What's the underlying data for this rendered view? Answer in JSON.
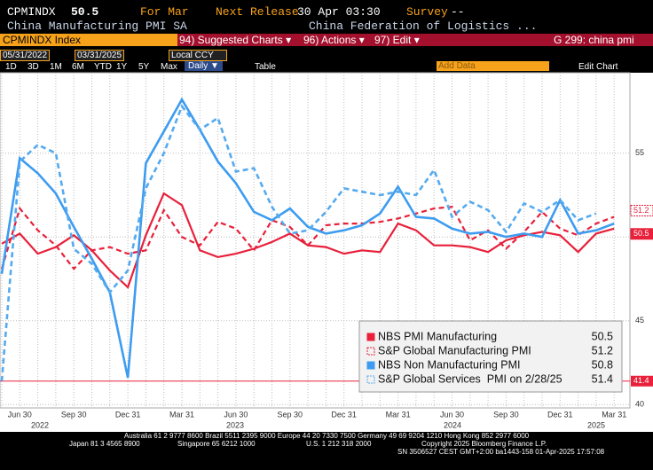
{
  "header": {
    "ticker": "CPMINDX",
    "period": "For Mar",
    "next_release_label": "Next Release",
    "next_release": "30 Apr 03:30",
    "survey_label": "Survey",
    "survey": "--",
    "description": "China Manufacturing PMI SA",
    "source": "China Federation of Logistics ...",
    "security": "CPMINDX Index",
    "menu": [
      "94) Suggested Charts ▾",
      "96) Actions ▾",
      "97) Edit ▾"
    ],
    "chart_name": "G 299: china pmi"
  },
  "toolbar": {
    "start_date": "05/31/2022",
    "end_date": "03/31/2025",
    "currency": "Local CCY",
    "ranges": [
      "1D",
      "3D",
      "1M",
      "6M",
      "YTD",
      "1Y",
      "5Y",
      "Max"
    ],
    "frequency": "Daily ▼",
    "table": "Table",
    "add_data": "Add Data",
    "edit_chart": "Edit Chart"
  },
  "chart_data": {
    "type": "line",
    "categories": [
      null,
      "Jun 30",
      null,
      null,
      "Sep 30",
      null,
      null,
      "Dec 31",
      null,
      null,
      "Mar 31",
      null,
      null,
      "Jun 30",
      null,
      null,
      "Sep 30",
      null,
      null,
      "Dec 31",
      null,
      null,
      "Mar 31",
      null,
      null,
      "Jun 30",
      null,
      null,
      "Sep 30",
      null,
      null,
      "Dec 31",
      null,
      null,
      "Mar 31"
    ],
    "years": [
      "2022",
      "2023",
      "2024",
      "2025"
    ],
    "ylim": [
      39.8,
      59.8
    ],
    "yticks": [
      40,
      45,
      50,
      55
    ],
    "grid": true,
    "reference_line": 41.4,
    "series": [
      {
        "name": "NBS PMI Manufacturing",
        "color": "#e8203a",
        "dashed": false,
        "values": [
          49.6,
          50.2,
          49.0,
          49.4,
          50.1,
          49.2,
          48.0,
          47.0,
          50.1,
          52.6,
          51.9,
          49.2,
          48.8,
          49.0,
          49.3,
          49.7,
          50.2,
          49.5,
          49.4,
          49.0,
          49.2,
          49.1,
          50.8,
          50.4,
          49.5,
          49.5,
          49.4,
          49.1,
          49.8,
          50.1,
          50.3,
          50.1,
          49.1,
          50.2,
          50.5
        ]
      },
      {
        "name": "S&P Global Manufacturing PMI",
        "color": "#e8203a",
        "dashed": true,
        "values": [
          48.1,
          51.7,
          50.4,
          49.5,
          48.1,
          49.2,
          49.4,
          49.0,
          49.2,
          51.6,
          50.0,
          49.5,
          50.9,
          50.5,
          49.2,
          51.0,
          50.6,
          49.5,
          50.7,
          50.8,
          50.8,
          50.9,
          51.1,
          51.4,
          51.7,
          51.8,
          49.8,
          50.4,
          49.3,
          50.3,
          51.5,
          50.5,
          50.1,
          50.8,
          51.2
        ]
      },
      {
        "name": "NBS Non Manufacturing PMI",
        "color": "#3d9cf0",
        "dashed": false,
        "values": [
          47.8,
          54.7,
          53.8,
          52.6,
          50.6,
          48.7,
          46.7,
          41.6,
          54.4,
          56.3,
          58.2,
          56.4,
          54.5,
          53.2,
          51.5,
          51.0,
          51.7,
          50.6,
          50.2,
          50.4,
          50.7,
          51.4,
          53.0,
          51.2,
          51.1,
          50.5,
          50.2,
          50.3,
          50.0,
          50.2,
          50.0,
          52.2,
          50.2,
          50.4,
          50.8
        ]
      },
      {
        "name": "S&P Global Services  PMI on 2/28/25",
        "color": "#55aaee",
        "dashed": true,
        "values": [
          41.4,
          54.5,
          55.5,
          55.0,
          49.3,
          48.4,
          46.7,
          48.0,
          52.9,
          55.0,
          57.8,
          56.4,
          57.1,
          53.9,
          54.1,
          51.8,
          50.2,
          50.4,
          51.5,
          52.9,
          52.7,
          52.5,
          52.7,
          52.5,
          54.0,
          51.2,
          52.1,
          51.6,
          50.3,
          52.0,
          51.5,
          52.2,
          51.0,
          51.4,
          null
        ]
      }
    ]
  },
  "footer": [
    "Australia 61 2 9777 8600 Brazil 5511 2395 9000 Europe 44 20 7330 7500 Germany 49 69 9204 1210 Hong Kong 852 2977 6000",
    "Japan 81 3 4565 8900",
    "Singapore 65 6212 1000",
    "U.S. 1 212 318 2000",
    "Copyright 2025 Bloomberg Finance L.P.",
    "SN 3506527 CEST GMT+2:00 ba1443-158 01-Apr-2025 17:57:08"
  ]
}
